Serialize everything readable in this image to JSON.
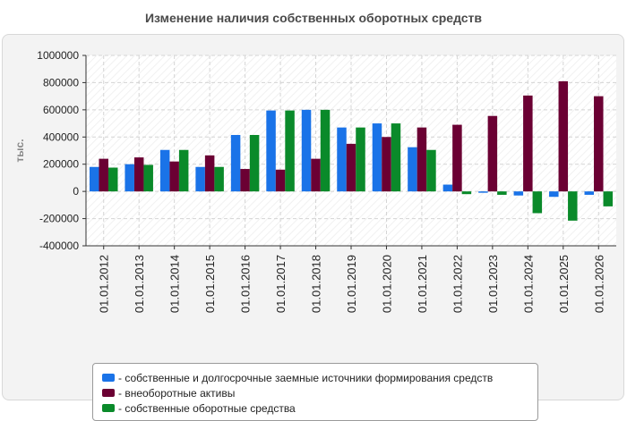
{
  "chart_data": {
    "type": "bar",
    "title": "Изменение наличия собственных оборотных средств",
    "ylabel": "тыс.",
    "xlabel": "",
    "ylim": [
      -400000,
      1000000
    ],
    "yticks": [
      1000000,
      800000,
      600000,
      400000,
      200000,
      0,
      -200000,
      -400000
    ],
    "grid": true,
    "legend_position": "bottom",
    "categories": [
      "01.01.2012",
      "01.01.2013",
      "01.01.2014",
      "01.01.2015",
      "01.01.2016",
      "01.01.2017",
      "01.01.2018",
      "01.01.2019",
      "01.01.2020",
      "01.01.2021",
      "01.01.2022",
      "01.01.2023",
      "01.01.2024",
      "01.01.2025",
      "01.01.2026"
    ],
    "series": [
      {
        "name": "собственные и долгосрочные заемные источники формирования средств",
        "color": "#1a73e8",
        "values": [
          180000,
          200000,
          305000,
          180000,
          415000,
          595000,
          600000,
          470000,
          500000,
          325000,
          50000,
          -10000,
          -30000,
          -40000,
          -25000
        ]
      },
      {
        "name": "внеоборотные активы",
        "color": "#6b0033",
        "values": [
          240000,
          250000,
          220000,
          265000,
          165000,
          160000,
          240000,
          350000,
          400000,
          470000,
          490000,
          555000,
          705000,
          810000,
          700000
        ]
      },
      {
        "name": "собственные оборотные средства",
        "color": "#0a8a2a",
        "values": [
          175000,
          195000,
          305000,
          180000,
          415000,
          595000,
          600000,
          470000,
          500000,
          305000,
          -20000,
          -25000,
          -160000,
          -215000,
          -110000
        ]
      }
    ]
  }
}
